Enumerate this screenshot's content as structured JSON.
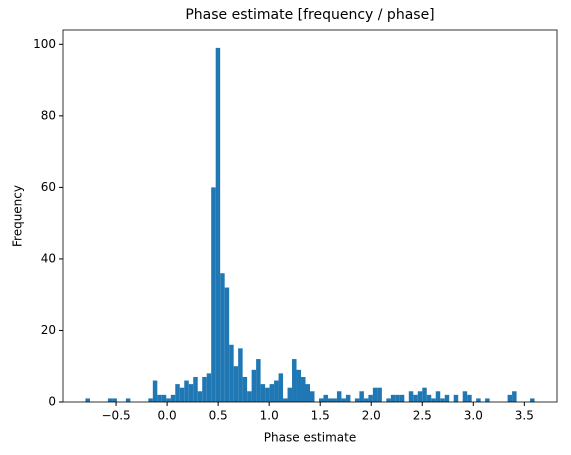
{
  "chart_data": {
    "type": "histogram",
    "title": "Phase estimate [frequency / phase]",
    "x_label": "Phase estimate",
    "y_label": "Frequency",
    "color": "#1f77b4",
    "bins": [
      -0.8,
      -0.756,
      -0.712,
      -0.668,
      -0.624,
      -0.58,
      -0.536,
      -0.492,
      -0.448,
      -0.404,
      -0.36,
      -0.316,
      -0.272,
      -0.228,
      -0.184,
      -0.14,
      -0.096,
      -0.052,
      -0.008,
      0.036,
      0.08,
      0.124,
      0.168,
      0.212,
      0.256,
      0.3,
      0.344,
      0.388,
      0.432,
      0.476,
      0.52,
      0.564,
      0.608,
      0.652,
      0.696,
      0.74,
      0.784,
      0.828,
      0.872,
      0.916,
      0.96,
      1.004,
      1.048,
      1.092,
      1.136,
      1.18,
      1.224,
      1.268,
      1.312,
      1.356,
      1.4,
      1.444,
      1.488,
      1.532,
      1.576,
      1.62,
      1.664,
      1.708,
      1.752,
      1.796,
      1.84,
      1.884,
      1.928,
      1.972,
      2.016,
      2.06,
      2.104,
      2.148,
      2.192,
      2.236,
      2.28,
      2.324,
      2.368,
      2.412,
      2.456,
      2.5,
      2.544,
      2.588,
      2.632,
      2.676,
      2.72,
      2.764,
      2.808,
      2.852,
      2.896,
      2.94,
      2.984,
      3.028,
      3.072,
      3.116,
      3.16,
      3.204,
      3.248,
      3.292,
      3.336,
      3.38,
      3.424,
      3.468,
      3.512,
      3.556,
      3.6
    ],
    "values": [
      1,
      0,
      0,
      0,
      0,
      1,
      1,
      0,
      0,
      1,
      0,
      0,
      0,
      0,
      1,
      6,
      2,
      2,
      1,
      2,
      5,
      4,
      6,
      5,
      7,
      3,
      7,
      8,
      60,
      99,
      36,
      32,
      16,
      10,
      15,
      7,
      3,
      9,
      12,
      5,
      4,
      5,
      6,
      8,
      1,
      4,
      12,
      9,
      7,
      5,
      3,
      0,
      1,
      2,
      1,
      1,
      3,
      1,
      2,
      0,
      1,
      3,
      1,
      2,
      4,
      4,
      0,
      1,
      2,
      2,
      2,
      0,
      3,
      2,
      3,
      4,
      2,
      1,
      3,
      1,
      2,
      0,
      2,
      0,
      3,
      2,
      0,
      1,
      0,
      1,
      0,
      0,
      0,
      0,
      2,
      3,
      0,
      0,
      0,
      1
    ],
    "xlim": [
      -1.02,
      3.82
    ],
    "xticks": [
      {
        "value": -0.5,
        "label": "−0.5"
      },
      {
        "value": 0,
        "label": "0.0"
      },
      0.5,
      {
        "value": 1,
        "label": "1.0"
      },
      1.5,
      {
        "value": 2,
        "label": "2.0"
      },
      2.5,
      {
        "value": 3,
        "label": "3.0"
      },
      3.5
    ],
    "ylim": [
      0,
      104
    ],
    "yticks": [
      0,
      20,
      40,
      60,
      80,
      100
    ]
  }
}
